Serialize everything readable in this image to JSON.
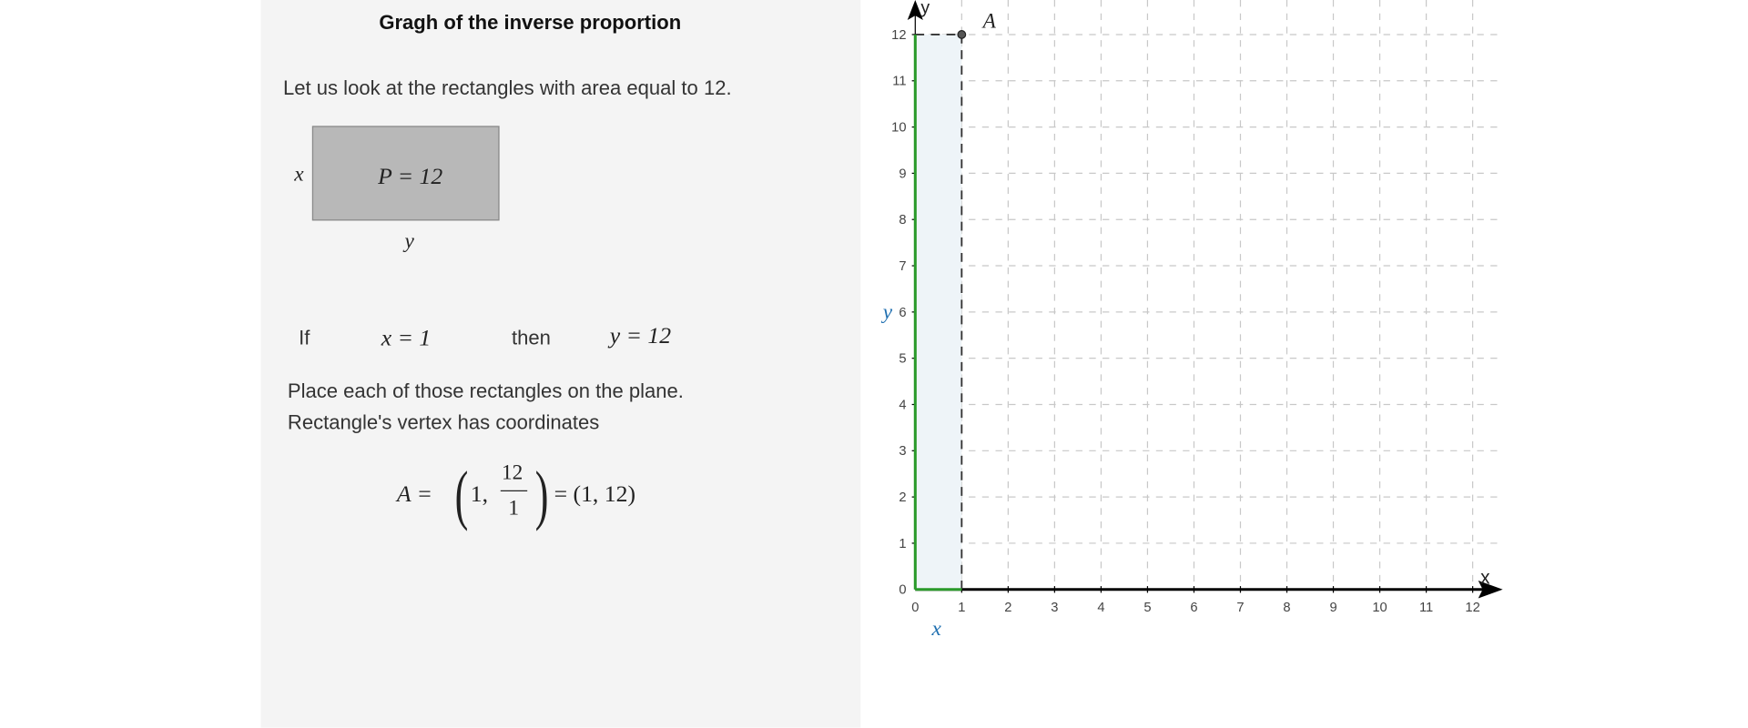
{
  "lesson": {
    "title": "Gragh of the inverse proportion",
    "intro": "Let us look at the rectangles with area equal to 12.",
    "rect_side_x": "x",
    "rect_side_y": "y",
    "rect_label": "P = 12",
    "if_label": "If",
    "x_eq": "x = 1",
    "then_label": "then",
    "y_eq": "y = 12",
    "instruction_1": "Place each of those rectangles on the plane.",
    "instruction_2": "Rectangle's vertex has coordinates",
    "formula_lhs": "A =",
    "formula_one": "1,",
    "formula_num": "12",
    "formula_den": "1",
    "formula_rhs": "= (1, 12)"
  },
  "chart_data": {
    "type": "scatter",
    "xlabel": "x",
    "ylabel": "y",
    "xlim": [
      0,
      12
    ],
    "ylim": [
      0,
      12
    ],
    "x_ticks": [
      "0",
      "1",
      "2",
      "3",
      "4",
      "5",
      "6",
      "7",
      "8",
      "9",
      "10",
      "11",
      "12"
    ],
    "y_ticks": [
      "0",
      "1",
      "2",
      "3",
      "4",
      "5",
      "6",
      "7",
      "8",
      "9",
      "10",
      "11",
      "12"
    ],
    "grid": true,
    "points": [
      {
        "label": "A",
        "x": 1,
        "y": 12
      }
    ],
    "rectangle": {
      "x": 1,
      "y": 12,
      "side_x_label": "x",
      "side_y_label": "y"
    },
    "colors": {
      "rect_side": "#2a9a2a",
      "rect_fill": "#eef4f8",
      "side_label": "#1f6fb0",
      "grid": "#c8c8c8"
    }
  }
}
